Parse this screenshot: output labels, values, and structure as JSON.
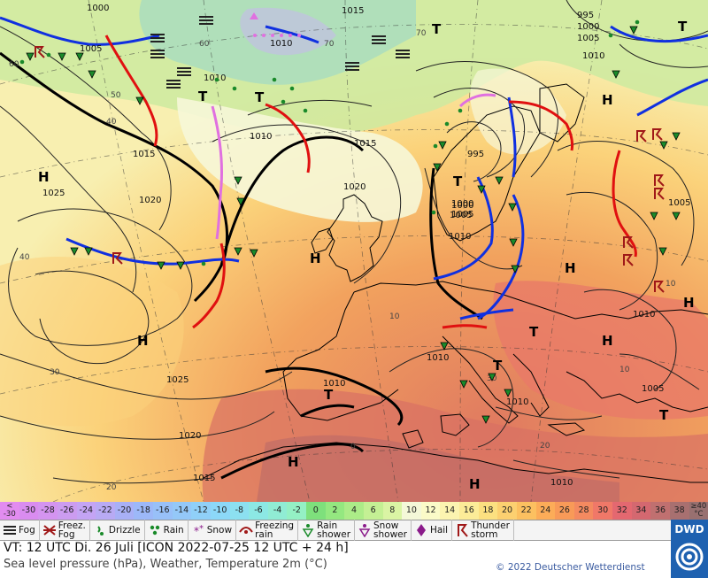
{
  "valid_time": "VT: 12 UTC Di.   26 Juli [ICON 2022-07-25  12 UTC + 24 h]",
  "product": "Sea level pressure (hPa), Weather, Temperature 2m (°C)",
  "copyright": "© 2022 Deutscher Wetterdienst",
  "logo_text": "DWD",
  "pressure_labels": [
    "1000",
    "1005",
    "995",
    "1000",
    "1005",
    "1010",
    "1015",
    "1010",
    "1010",
    "1015",
    "1020",
    "1020",
    "1025",
    "1025",
    "1020",
    "1015",
    "1010",
    "1015",
    "1010",
    "1010",
    "1005",
    "1000",
    "1005",
    "1010",
    "1010",
    "1005",
    "1000",
    "995",
    "1005",
    "1010",
    "1010"
  ],
  "temperature_labels": [
    "60",
    "70",
    "50",
    "40",
    "30",
    "20",
    "0",
    "10",
    "20",
    "30",
    "40",
    "60",
    "70",
    "10",
    "10"
  ],
  "pressure_centers": {
    "highs": [
      "H",
      "H",
      "H",
      "H",
      "H",
      "H",
      "H",
      "H",
      "H"
    ],
    "lows": [
      "T",
      "T",
      "T",
      "T",
      "T",
      "T",
      "T",
      "T",
      "T"
    ]
  },
  "temperature_scale": {
    "steps": [
      {
        "label": "<\n-30",
        "color": "#e28cf0"
      },
      {
        "label": "-30",
        "color": "#d98cf0"
      },
      {
        "label": "-28",
        "color": "#d494f0"
      },
      {
        "label": "-26",
        "color": "#cc9cf0"
      },
      {
        "label": "-24",
        "color": "#c4a4f4"
      },
      {
        "label": "-22",
        "color": "#b8aaf4"
      },
      {
        "label": "-20",
        "color": "#a8b0f6"
      },
      {
        "label": "-18",
        "color": "#9cb8f8"
      },
      {
        "label": "-16",
        "color": "#98c0f8"
      },
      {
        "label": "-14",
        "color": "#94c8f8"
      },
      {
        "label": "-12",
        "color": "#90d0f8"
      },
      {
        "label": "-10",
        "color": "#8cd8f8"
      },
      {
        "label": "-8",
        "color": "#8ce0f0"
      },
      {
        "label": "-6",
        "color": "#8ce8e4"
      },
      {
        "label": "-4",
        "color": "#90ecd4"
      },
      {
        "label": "-2",
        "color": "#94f0c4"
      },
      {
        "label": "0",
        "color": "#7ee07c"
      },
      {
        "label": "2",
        "color": "#94e880"
      },
      {
        "label": "4",
        "color": "#acec88"
      },
      {
        "label": "6",
        "color": "#c4f094"
      },
      {
        "label": "8",
        "color": "#daf4a4"
      },
      {
        "label": "10",
        "color": "#f4f8d8"
      },
      {
        "label": "12",
        "color": "#fbfbc8"
      },
      {
        "label": "14",
        "color": "#fcf4b0"
      },
      {
        "label": "16",
        "color": "#fcec98"
      },
      {
        "label": "18",
        "color": "#fce080"
      },
      {
        "label": "20",
        "color": "#fcd070"
      },
      {
        "label": "22",
        "color": "#fcc060"
      },
      {
        "label": "24",
        "color": "#fcac58"
      },
      {
        "label": "26",
        "color": "#f89a58"
      },
      {
        "label": "28",
        "color": "#f48a60"
      },
      {
        "label": "30",
        "color": "#f07868"
      },
      {
        "label": "32",
        "color": "#e46870"
      },
      {
        "label": "34",
        "color": "#d46870"
      },
      {
        "label": "36",
        "color": "#c07070"
      },
      {
        "label": "38",
        "color": "#a87070"
      },
      {
        "label": "≥40\n°C",
        "color": "#987070"
      }
    ]
  },
  "weather_legend": [
    {
      "icon": "fog-icon",
      "label": "Fog"
    },
    {
      "icon": "freezing-fog-icon",
      "label": "Freez.\nFog"
    },
    {
      "icon": "drizzle-icon",
      "label": "Drizzle"
    },
    {
      "icon": "rain-icon",
      "label": "Rain"
    },
    {
      "icon": "snow-icon",
      "label": "Snow"
    },
    {
      "icon": "freezing-rain-icon",
      "label": "Freezing\nrain"
    },
    {
      "icon": "rain-shower-icon",
      "label": "Rain\nshower"
    },
    {
      "icon": "snow-shower-icon",
      "label": "Snow\nshower"
    },
    {
      "icon": "hail-icon",
      "label": "Hail"
    },
    {
      "icon": "thunderstorm-icon",
      "label": "Thunder\nstorm"
    }
  ],
  "colors": {
    "cold_front": "#1030e0",
    "warm_front": "#e01010",
    "occlusion": "#e070e0",
    "isobar": "#222222",
    "accent": "#1e61b0"
  }
}
